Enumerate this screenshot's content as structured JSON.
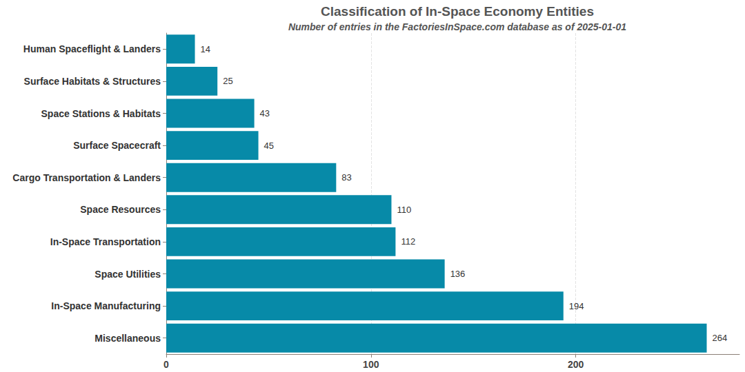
{
  "chart_data": {
    "type": "bar",
    "orientation": "horizontal",
    "title": "Classification of In-Space Economy Entities",
    "subtitle": "Number of entries in the FactoriesInSpace.com database as of 2025-01-01",
    "categories": [
      "Human Spaceflight & Landers",
      "Surface Habitats & Structures",
      "Space Stations & Habitats",
      "Surface Spacecraft",
      "Cargo Transportation & Landers",
      "Space Resources",
      "In-Space Transportation",
      "Space Utilities",
      "In-Space Manufacturing",
      "Miscellaneous"
    ],
    "values": [
      14,
      25,
      43,
      45,
      83,
      110,
      112,
      136,
      194,
      264
    ],
    "color": "#078aa8",
    "xlim": [
      0,
      280
    ],
    "xticks": [
      0,
      100,
      200
    ],
    "grid": true,
    "data_labels": true
  }
}
